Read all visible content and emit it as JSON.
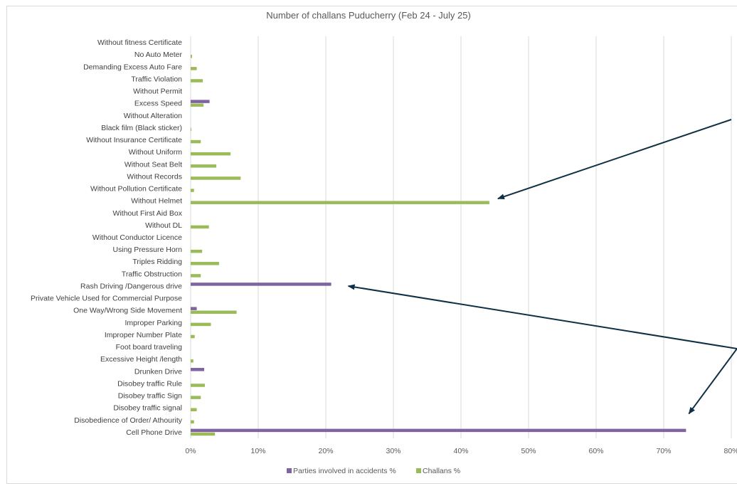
{
  "chart_data": {
    "type": "bar",
    "orientation": "horizontal",
    "title": "Number of challans Puducherry (Feb 24 - July 25)",
    "xlim": [
      0,
      80
    ],
    "x_ticks": [
      "0%",
      "10%",
      "20%",
      "30%",
      "40%",
      "50%",
      "60%",
      "70%",
      "80%"
    ],
    "grid": true,
    "legend_position": "bottom",
    "categories": [
      "Without fitness Certificate",
      "No Auto Meter",
      "Demanding Excess Auto Fare",
      "Traffic Violation",
      "Without Permit",
      "Excess Speed",
      "Without Alteration",
      "Black film (Black sticker)",
      "Without Insurance Certificate",
      "Without Uniform",
      "Without Seat Belt",
      "Without Records",
      "Without Pollution Certificate",
      "Without Helmet",
      "Without First Aid Box",
      "Without DL",
      "Without Conductor Licence",
      "Using Pressure Horn",
      "Triples Ridding",
      "Traffic Obstruction",
      "Rash Driving /Dangerous drive",
      "Private Vehicle Used for Commercial Purpose",
      "One Way/Wrong Side Movement",
      "Improper Parking",
      "Improper Number Plate",
      "Foot board traveling",
      "Excessive Height /length",
      "Drunken Drive",
      "Disobey traffic Rule",
      "Disobey traffic Sign",
      "Disobey traffic signal",
      "Disobedience of Order/ Athourity",
      "Cell Phone Drive"
    ],
    "series": [
      {
        "name": "Parties involved in accidents %",
        "color": "#8064a2",
        "values": [
          0,
          0,
          0,
          0,
          0,
          2.8,
          0,
          0,
          0,
          0,
          0,
          0,
          0,
          0,
          0,
          0,
          0,
          0,
          0,
          0,
          20.8,
          0,
          0.9,
          0,
          0,
          0,
          0,
          2.0,
          0,
          0,
          0,
          0,
          73.3
        ]
      },
      {
        "name": "Challans %",
        "color": "#9bbb59",
        "values": [
          0,
          0.2,
          0.9,
          1.8,
          0,
          1.9,
          0,
          0.1,
          1.5,
          5.9,
          3.8,
          7.4,
          0.5,
          44.2,
          0,
          2.7,
          0,
          1.7,
          4.2,
          1.5,
          0,
          0,
          6.8,
          3.0,
          0.6,
          0,
          0.4,
          0,
          2.1,
          1.5,
          0.9,
          0.5,
          3.6
        ]
      }
    ]
  },
  "annotations": {
    "arrow_color": "#0f2f44",
    "arrows": [
      {
        "points_to": "Without Helmet",
        "value": 44.2
      },
      {
        "points_to": "Rash Driving /Dangerous drive",
        "value": 20.8
      },
      {
        "points_to": "Cell Phone Drive",
        "value": 73.3
      }
    ]
  }
}
